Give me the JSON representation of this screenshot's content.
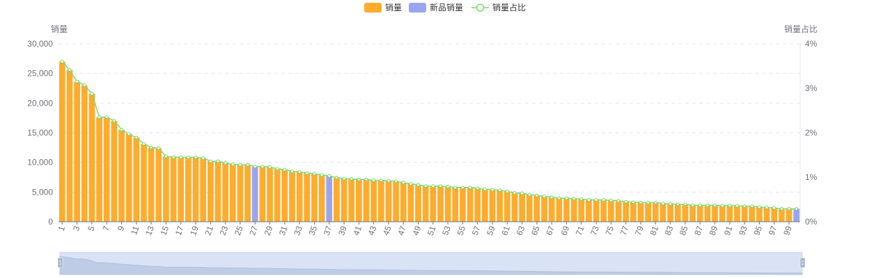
{
  "legend": {
    "items": [
      {
        "key": "sales",
        "label": "销量",
        "color": "#FEAC2D"
      },
      {
        "key": "new",
        "label": "新品销量",
        "color": "#9AA5F2"
      },
      {
        "key": "ratio",
        "label": "销量占比",
        "color": "#7ED86A"
      }
    ]
  },
  "chart_data": {
    "type": "bar",
    "title": "",
    "left_axis": {
      "label": "销量",
      "min": 0,
      "max": 30000,
      "ticks": [
        0,
        5000,
        10000,
        15000,
        20000,
        25000,
        30000
      ],
      "tick_labels": [
        "0",
        "5,000",
        "10,000",
        "15,000",
        "20,000",
        "25,000",
        "30,000"
      ]
    },
    "right_axis": {
      "label": "销量占比",
      "min": 0,
      "max": 4,
      "unit": "%",
      "ticks": [
        0,
        1,
        2,
        3,
        4
      ],
      "tick_labels": [
        "0%",
        "1%",
        "2%",
        "3%",
        "4%"
      ]
    },
    "x_tick_labels": [
      "1",
      "3",
      "5",
      "7",
      "9",
      "11",
      "13",
      "15",
      "17",
      "19",
      "21",
      "23",
      "25",
      "27",
      "29",
      "31",
      "33",
      "35",
      "37",
      "39",
      "41",
      "43",
      "45",
      "47",
      "49",
      "51",
      "53",
      "55",
      "57",
      "59",
      "61",
      "63",
      "65",
      "67",
      "69",
      "71",
      "73",
      "75",
      "77",
      "79",
      "81",
      "83",
      "85",
      "87",
      "89",
      "91",
      "93",
      "95",
      "97",
      "99"
    ],
    "categories": [
      1,
      2,
      3,
      4,
      5,
      6,
      7,
      8,
      9,
      10,
      11,
      12,
      13,
      14,
      15,
      16,
      17,
      18,
      19,
      20,
      21,
      22,
      23,
      24,
      25,
      26,
      27,
      28,
      29,
      30,
      31,
      32,
      33,
      34,
      35,
      36,
      37,
      38,
      39,
      40,
      41,
      42,
      43,
      44,
      45,
      46,
      47,
      48,
      49,
      50,
      51,
      52,
      53,
      54,
      55,
      56,
      57,
      58,
      59,
      60,
      61,
      62,
      63,
      64,
      65,
      66,
      67,
      68,
      69,
      70,
      71,
      72,
      73,
      74,
      75,
      76,
      77,
      78,
      79,
      80,
      81,
      82,
      83,
      84,
      85,
      86,
      87,
      88,
      89,
      90,
      91,
      92,
      93,
      94,
      95,
      96,
      97,
      98,
      99,
      100
    ],
    "series": [
      {
        "name": "销量",
        "kind": "bar",
        "axis": "left",
        "color": "#FEAC2D",
        "values": [
          27000,
          25600,
          23600,
          23000,
          21600,
          17600,
          17600,
          17000,
          15500,
          14800,
          14200,
          13100,
          12500,
          12400,
          11000,
          10900,
          10900,
          10900,
          10900,
          10700,
          10200,
          10200,
          9900,
          9700,
          9600,
          9600,
          0,
          9300,
          9200,
          8900,
          8800,
          8500,
          8400,
          8200,
          8100,
          7900,
          0,
          7400,
          7300,
          7200,
          7100,
          7100,
          7000,
          7000,
          6900,
          6800,
          6600,
          6400,
          6200,
          6000,
          6000,
          6000,
          5900,
          5800,
          5800,
          5800,
          5600,
          5500,
          5400,
          5300,
          5100,
          4900,
          4800,
          4600,
          4400,
          4300,
          4100,
          4000,
          4000,
          3900,
          3800,
          3700,
          3700,
          3700,
          3600,
          3500,
          3400,
          3300,
          3200,
          3200,
          3200,
          3100,
          3000,
          2900,
          2900,
          2800,
          2800,
          2800,
          2800,
          2700,
          2700,
          2700,
          2600,
          2600,
          2500,
          2400,
          2300,
          2200,
          2200,
          0
        ]
      },
      {
        "name": "新品销量",
        "kind": "bar",
        "axis": "left",
        "color": "#9AA5F2",
        "values": [
          0,
          0,
          0,
          0,
          0,
          0,
          0,
          0,
          0,
          0,
          0,
          0,
          0,
          0,
          0,
          0,
          0,
          0,
          0,
          0,
          0,
          0,
          0,
          0,
          0,
          0,
          9300,
          0,
          0,
          0,
          0,
          0,
          0,
          0,
          0,
          0,
          7700,
          0,
          0,
          0,
          0,
          0,
          0,
          0,
          0,
          0,
          0,
          0,
          0,
          0,
          0,
          0,
          0,
          0,
          0,
          0,
          0,
          0,
          0,
          0,
          0,
          0,
          0,
          0,
          0,
          0,
          0,
          0,
          0,
          0,
          0,
          0,
          0,
          0,
          0,
          0,
          0,
          0,
          0,
          0,
          0,
          0,
          0,
          0,
          0,
          0,
          0,
          0,
          0,
          0,
          0,
          0,
          0,
          0,
          0,
          0,
          0,
          0,
          0,
          2200
        ]
      },
      {
        "name": "销量占比",
        "kind": "line",
        "axis": "right",
        "color": "#7ED86A",
        "values": [
          3.6,
          3.41,
          3.15,
          3.07,
          2.88,
          2.35,
          2.35,
          2.27,
          2.07,
          1.97,
          1.89,
          1.75,
          1.67,
          1.65,
          1.47,
          1.45,
          1.45,
          1.45,
          1.45,
          1.43,
          1.36,
          1.36,
          1.32,
          1.29,
          1.28,
          1.28,
          1.24,
          1.24,
          1.23,
          1.19,
          1.17,
          1.13,
          1.12,
          1.09,
          1.08,
          1.05,
          1.03,
          0.99,
          0.97,
          0.96,
          0.95,
          0.95,
          0.93,
          0.93,
          0.92,
          0.91,
          0.88,
          0.85,
          0.83,
          0.8,
          0.8,
          0.8,
          0.79,
          0.77,
          0.77,
          0.77,
          0.75,
          0.73,
          0.72,
          0.71,
          0.68,
          0.65,
          0.64,
          0.61,
          0.59,
          0.57,
          0.55,
          0.53,
          0.53,
          0.52,
          0.51,
          0.49,
          0.49,
          0.49,
          0.48,
          0.47,
          0.45,
          0.44,
          0.43,
          0.43,
          0.43,
          0.41,
          0.4,
          0.39,
          0.39,
          0.37,
          0.37,
          0.37,
          0.37,
          0.36,
          0.36,
          0.36,
          0.35,
          0.35,
          0.33,
          0.32,
          0.31,
          0.29,
          0.29,
          0.29
        ]
      }
    ],
    "grid": true,
    "legend_position": "top-center",
    "data_zoom": {
      "range_start_percent": 0,
      "range_end_percent": 100
    }
  }
}
